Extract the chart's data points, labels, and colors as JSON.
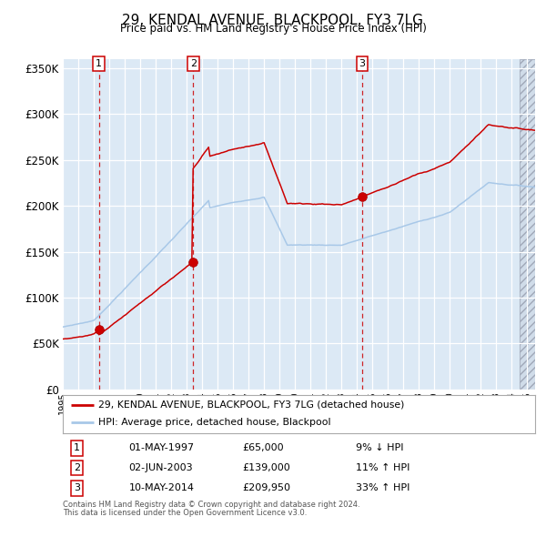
{
  "title": "29, KENDAL AVENUE, BLACKPOOL, FY3 7LG",
  "subtitle": "Price paid vs. HM Land Registry's House Price Index (HPI)",
  "ylim": [
    0,
    360000
  ],
  "yticks": [
    0,
    50000,
    100000,
    150000,
    200000,
    250000,
    300000,
    350000
  ],
  "ytick_labels": [
    "£0",
    "£50K",
    "£100K",
    "£150K",
    "£200K",
    "£250K",
    "£300K",
    "£350K"
  ],
  "hpi_color": "#a8c8e8",
  "price_color": "#cc0000",
  "dot_color": "#cc0000",
  "bg_color": "#dce9f5",
  "grid_color": "#ffffff",
  "sale_t": [
    1997.333,
    2003.417,
    2014.333
  ],
  "sale_prices": [
    65000,
    139000,
    209950
  ],
  "sale_labels": [
    "1",
    "2",
    "3"
  ],
  "legend_label_price": "29, KENDAL AVENUE, BLACKPOOL, FY3 7LG (detached house)",
  "legend_label_hpi": "HPI: Average price, detached house, Blackpool",
  "table_rows": [
    [
      "1",
      "01-MAY-1997",
      "£65,000",
      "9% ↓ HPI"
    ],
    [
      "2",
      "02-JUN-2003",
      "£139,000",
      "11% ↑ HPI"
    ],
    [
      "3",
      "10-MAY-2014",
      "£209,950",
      "33% ↑ HPI"
    ]
  ],
  "footnote1": "Contains HM Land Registry data © Crown copyright and database right 2024.",
  "footnote2": "This data is licensed under the Open Government Licence v3.0."
}
